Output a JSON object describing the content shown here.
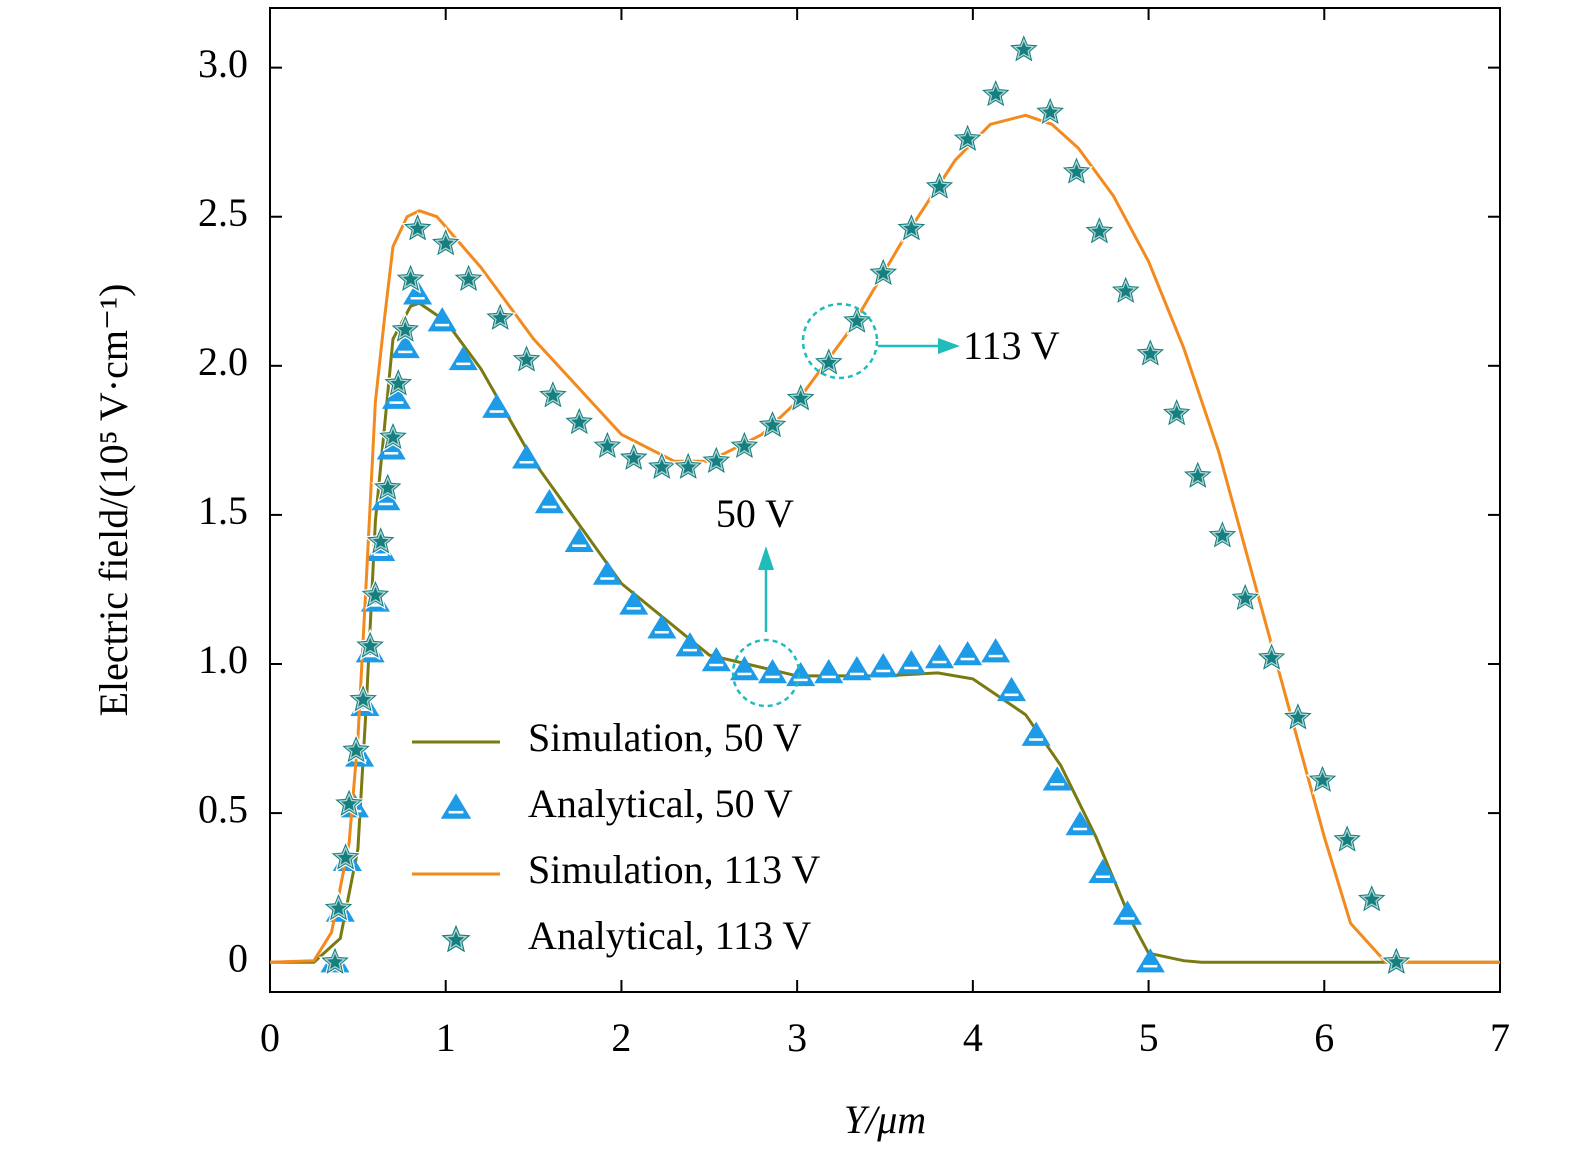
{
  "chart_data": {
    "type": "line",
    "xlabel": "Y/μm",
    "ylabel": "Electric field/(10⁵ V·cm⁻¹)",
    "xlim": [
      0,
      7
    ],
    "ylim": [
      -0.1,
      3.2
    ],
    "xticks": [
      0,
      1,
      2,
      3,
      4,
      5,
      6,
      7
    ],
    "yticks": [
      0,
      0.5,
      {
        "value": 1,
        "label": "1.0"
      },
      1.5,
      {
        "value": 2,
        "label": "2.0"
      },
      2.5,
      {
        "value": 3,
        "label": "3.0"
      }
    ],
    "annotations": [
      {
        "text": "113 V",
        "color": "#20bcbc"
      },
      {
        "text": "50 V",
        "color": "#20bcbc"
      }
    ],
    "series": [
      {
        "name": "Simulation, 50 V",
        "color": "#7a7a12",
        "style": "line",
        "x": [
          0,
          0.25,
          0.4,
          0.5,
          0.55,
          0.6,
          0.7,
          0.8,
          0.85,
          1.0,
          1.2,
          1.5,
          2.0,
          2.5,
          3.0,
          3.5,
          3.8,
          4.0,
          4.3,
          4.5,
          4.7,
          4.9,
          5.0,
          5.2,
          5.3,
          7
        ],
        "values": [
          0,
          0,
          0.08,
          0.38,
          0.88,
          1.48,
          2.09,
          2.2,
          2.21,
          2.15,
          1.99,
          1.68,
          1.27,
          1.03,
          0.96,
          0.96,
          0.97,
          0.95,
          0.83,
          0.66,
          0.42,
          0.14,
          0.03,
          0.005,
          0,
          0
        ]
      },
      {
        "name": "Analytical, 50 V",
        "color": "#1e9be6",
        "style": "marker",
        "marker": "triangle",
        "x": [
          0.37,
          0.4,
          0.44,
          0.48,
          0.51,
          0.54,
          0.57,
          0.6,
          0.63,
          0.66,
          0.69,
          0.72,
          0.77,
          0.84,
          0.98,
          1.1,
          1.29,
          1.46,
          1.59,
          1.76,
          1.92,
          2.07,
          2.23,
          2.39,
          2.54,
          2.7,
          2.86,
          3.02,
          3.18,
          3.34,
          3.49,
          3.65,
          3.81,
          3.97,
          4.13,
          4.22,
          4.36,
          4.48,
          4.61,
          4.74,
          4.88,
          5.01
        ],
        "values": [
          0,
          0.17,
          0.34,
          0.52,
          0.69,
          0.86,
          1.04,
          1.21,
          1.38,
          1.55,
          1.72,
          1.89,
          2.06,
          2.24,
          2.15,
          2.02,
          1.86,
          1.69,
          1.54,
          1.41,
          1.3,
          1.2,
          1.12,
          1.06,
          1.01,
          0.98,
          0.97,
          0.96,
          0.97,
          0.98,
          0.99,
          1.0,
          1.02,
          1.03,
          1.04,
          0.91,
          0.76,
          0.61,
          0.46,
          0.3,
          0.16,
          0
        ]
      },
      {
        "name": "Simulation, 113 V",
        "color": "#f28a1e",
        "style": "line",
        "x": [
          0,
          0.25,
          0.35,
          0.45,
          0.5,
          0.55,
          0.6,
          0.65,
          0.7,
          0.78,
          0.85,
          0.95,
          1.2,
          1.5,
          2.0,
          2.3,
          2.5,
          2.8,
          3.0,
          3.3,
          3.6,
          3.9,
          4.1,
          4.3,
          4.45,
          4.6,
          4.8,
          5.0,
          5.2,
          5.4,
          5.6,
          5.8,
          6.0,
          6.15,
          6.35,
          7
        ],
        "values": [
          0,
          0.005,
          0.1,
          0.4,
          0.75,
          1.3,
          1.88,
          2.15,
          2.4,
          2.5,
          2.52,
          2.5,
          2.33,
          2.09,
          1.77,
          1.68,
          1.68,
          1.77,
          1.88,
          2.12,
          2.42,
          2.69,
          2.81,
          2.84,
          2.81,
          2.73,
          2.57,
          2.35,
          2.06,
          1.71,
          1.28,
          0.85,
          0.42,
          0.13,
          0,
          0
        ]
      },
      {
        "name": "Analytical, 113 V",
        "color": "#167f7f",
        "style": "marker",
        "marker": "star",
        "x": [
          0.37,
          0.39,
          0.43,
          0.45,
          0.49,
          0.53,
          0.57,
          0.6,
          0.63,
          0.67,
          0.7,
          0.73,
          0.77,
          0.8,
          0.84,
          1.0,
          1.13,
          1.31,
          1.46,
          1.61,
          1.76,
          1.92,
          2.07,
          2.23,
          2.38,
          2.54,
          2.7,
          2.86,
          3.02,
          3.18,
          3.34,
          3.49,
          3.65,
          3.81,
          3.97,
          4.13,
          4.29,
          4.44,
          4.59,
          4.72,
          4.87,
          5.01,
          5.16,
          5.28,
          5.42,
          5.55,
          5.7,
          5.85,
          5.99,
          6.13,
          6.27,
          6.41
        ],
        "values": [
          0,
          0.18,
          0.35,
          0.53,
          0.71,
          0.88,
          1.06,
          1.23,
          1.41,
          1.59,
          1.76,
          1.94,
          2.12,
          2.29,
          2.46,
          2.41,
          2.29,
          2.16,
          2.02,
          1.9,
          1.81,
          1.73,
          1.69,
          1.66,
          1.66,
          1.68,
          1.73,
          1.8,
          1.89,
          2.01,
          2.15,
          2.31,
          2.46,
          2.6,
          2.76,
          2.91,
          3.06,
          2.85,
          2.65,
          2.45,
          2.25,
          2.04,
          1.84,
          1.63,
          1.43,
          1.22,
          1.02,
          0.82,
          0.61,
          0.41,
          0.21,
          0
        ]
      }
    ]
  }
}
